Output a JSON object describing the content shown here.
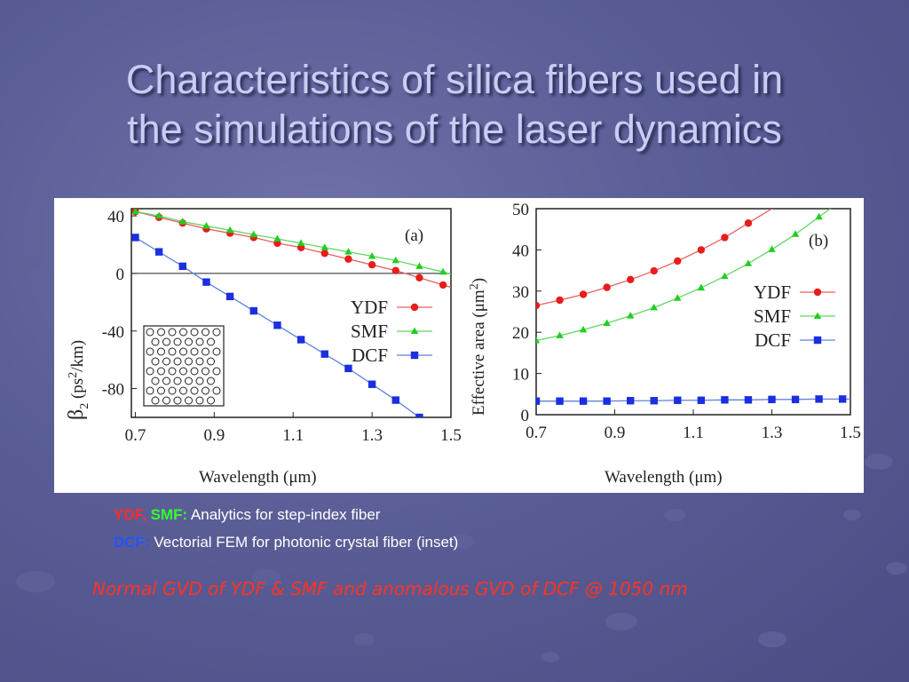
{
  "slide": {
    "title_line1": "Characteristics of silica fibers used in",
    "title_line2": "the simulations of the laser dynamics"
  },
  "captions": {
    "line1_ydf": "YDF,",
    "line1_smf": "SMF:",
    "line1_text": "Analytics for step-index fiber",
    "line2_dcf": "DCF:",
    "line2_text": "Vectorial FEM for photonic crystal fiber (inset)",
    "note": "Normal GVD of YDF & SMF and anomalous GVD of DCF @ 1050 nm"
  },
  "colors": {
    "ydf": "#e81c1c",
    "smf": "#1fcf1f",
    "dcf": "#1a2fe0",
    "ydf_line": "#e86060",
    "smf_line": "#60d860",
    "dcf_line": "#6080e0"
  },
  "chart_data": [
    {
      "type": "line",
      "panel_label": "(a)",
      "xlabel": "Wavelength (μm)",
      "ylabel_prefix": "β",
      "ylabel_sub": "2",
      "ylabel_rest": " (ps",
      "ylabel_sup": "2",
      "ylabel_end": "/km)",
      "xlim": [
        0.69,
        1.5
      ],
      "ylim": [
        -100,
        45
      ],
      "xticks": [
        0.7,
        0.9,
        1.1,
        1.3,
        1.5
      ],
      "xtick_labels": [
        "0.7",
        "0.9",
        "1.1",
        "1.3",
        "1.5"
      ],
      "yticks": [
        40,
        0,
        -40,
        -80
      ],
      "ytick_labels": [
        "40",
        "0",
        "-40",
        "-80"
      ],
      "zero_line": true,
      "legend_position": "right",
      "inset": "photonic crystal fiber cross-section",
      "series": [
        {
          "name": "YDF",
          "marker": "circle",
          "color_key": "ydf",
          "x": [
            0.7,
            0.76,
            0.82,
            0.88,
            0.94,
            1.0,
            1.06,
            1.12,
            1.18,
            1.24,
            1.3,
            1.36,
            1.42,
            1.48
          ],
          "y": [
            43,
            39,
            35,
            31,
            28,
            25,
            21,
            18,
            14,
            10,
            6,
            2,
            -3,
            -8
          ]
        },
        {
          "name": "SMF",
          "marker": "triangle",
          "color_key": "smf",
          "x": [
            0.7,
            0.76,
            0.82,
            0.88,
            0.94,
            1.0,
            1.06,
            1.12,
            1.18,
            1.24,
            1.3,
            1.36,
            1.42,
            1.48
          ],
          "y": [
            43,
            40,
            36,
            33,
            30,
            27,
            24,
            21,
            18,
            15,
            12,
            9,
            5,
            1
          ]
        },
        {
          "name": "DCF",
          "marker": "square",
          "color_key": "dcf",
          "x": [
            0.7,
            0.76,
            0.82,
            0.88,
            0.94,
            1.0,
            1.06,
            1.12,
            1.18,
            1.24,
            1.3,
            1.36,
            1.42
          ],
          "y": [
            25,
            15,
            5,
            -6,
            -16,
            -26,
            -36,
            -46,
            -56,
            -66,
            -77,
            -88,
            -100
          ]
        }
      ]
    },
    {
      "type": "line",
      "panel_label": "(b)",
      "xlabel": "Wavelength (μm)",
      "ylabel_main": "Effective area (μm",
      "ylabel_sup": "2",
      "ylabel_end": ")",
      "xlim": [
        0.7,
        1.5
      ],
      "ylim": [
        0,
        50
      ],
      "xticks": [
        0.7,
        0.9,
        1.1,
        1.3,
        1.5
      ],
      "xtick_labels": [
        "0.7",
        "0.9",
        "1.1",
        "1.3",
        "1.5"
      ],
      "yticks": [
        0,
        10,
        20,
        30,
        40,
        50
      ],
      "ytick_labels": [
        "0",
        "10",
        "20",
        "30",
        "40",
        "50"
      ],
      "legend_position": "right",
      "series": [
        {
          "name": "YDF",
          "marker": "circle",
          "color_key": "ydf",
          "x": [
            0.7,
            0.76,
            0.82,
            0.88,
            0.94,
            1.0,
            1.06,
            1.12,
            1.18,
            1.24
          ],
          "y": [
            26.5,
            27.8,
            29.2,
            30.9,
            32.8,
            34.9,
            37.3,
            40.0,
            43.0,
            46.5
          ]
        },
        {
          "name": "SMF",
          "marker": "triangle",
          "color_key": "smf",
          "x": [
            0.7,
            0.76,
            0.82,
            0.88,
            0.94,
            1.0,
            1.06,
            1.12,
            1.18,
            1.24,
            1.3,
            1.36,
            1.42
          ],
          "y": [
            18,
            19.2,
            20.6,
            22.2,
            24.0,
            26.0,
            28.3,
            30.8,
            33.6,
            36.7,
            40.1,
            43.8,
            48.0
          ]
        },
        {
          "name": "DCF",
          "marker": "square",
          "color_key": "dcf",
          "x": [
            0.7,
            0.76,
            0.82,
            0.88,
            0.94,
            1.0,
            1.06,
            1.12,
            1.18,
            1.24,
            1.3,
            1.36,
            1.42,
            1.48
          ],
          "y": [
            3.3,
            3.3,
            3.3,
            3.3,
            3.4,
            3.4,
            3.5,
            3.5,
            3.6,
            3.6,
            3.7,
            3.7,
            3.8,
            3.8
          ]
        }
      ]
    }
  ]
}
